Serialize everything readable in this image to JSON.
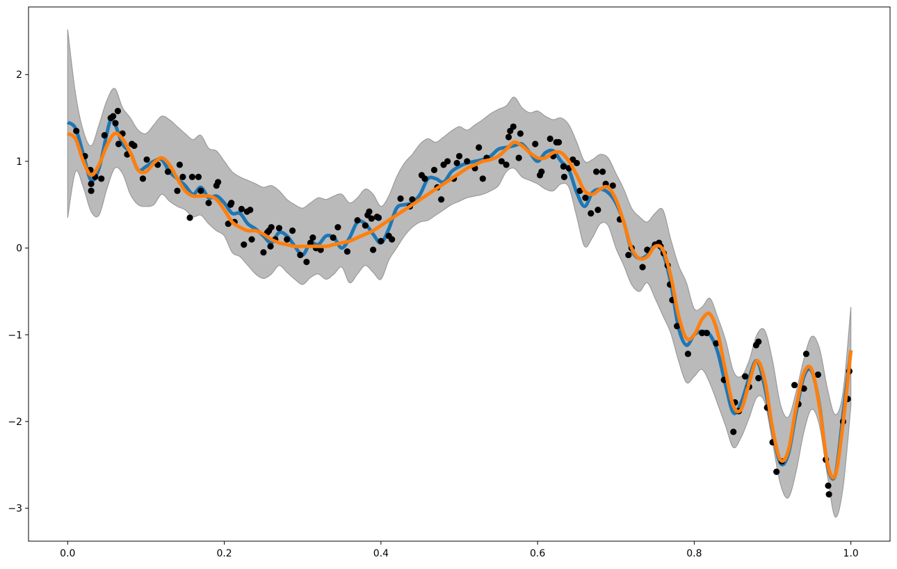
{
  "chart_data": {
    "type": "line",
    "title": "",
    "xlabel": "",
    "ylabel": "",
    "xlim": [
      -0.05,
      1.05
    ],
    "ylim": [
      -3.38,
      2.78
    ],
    "grid": false,
    "legend": "none",
    "x_ticks": [
      {
        "value": 0.0,
        "label": "0.0"
      },
      {
        "value": 0.2,
        "label": "0.2"
      },
      {
        "value": 0.4,
        "label": "0.4"
      },
      {
        "value": 0.6,
        "label": "0.6"
      },
      {
        "value": 0.8,
        "label": "0.8"
      },
      {
        "value": 1.0,
        "label": "1.0"
      }
    ],
    "y_ticks": [
      {
        "value": 2,
        "label": "2"
      },
      {
        "value": 1,
        "label": "1"
      },
      {
        "value": 0,
        "label": "0"
      },
      {
        "value": -1,
        "label": "−1"
      },
      {
        "value": -2,
        "label": "−2"
      },
      {
        "value": -3,
        "label": "−3"
      }
    ],
    "colors": {
      "band": "#bababa",
      "band_edge": "#9a9a9a",
      "blue": "#1f77b4",
      "orange": "#ff7f0e",
      "points": "#000000"
    },
    "series": [
      {
        "role": "uncertainty-band",
        "x": [
          0.0,
          0.01,
          0.02,
          0.03,
          0.04,
          0.05,
          0.06,
          0.07,
          0.08,
          0.09,
          0.1,
          0.11,
          0.12,
          0.13,
          0.14,
          0.15,
          0.16,
          0.17,
          0.18,
          0.19,
          0.2,
          0.21,
          0.22,
          0.23,
          0.24,
          0.25,
          0.26,
          0.27,
          0.28,
          0.29,
          0.3,
          0.31,
          0.32,
          0.33,
          0.34,
          0.35,
          0.36,
          0.37,
          0.38,
          0.39,
          0.4,
          0.41,
          0.42,
          0.43,
          0.44,
          0.45,
          0.46,
          0.47,
          0.48,
          0.49,
          0.5,
          0.51,
          0.52,
          0.53,
          0.54,
          0.55,
          0.56,
          0.57,
          0.58,
          0.59,
          0.6,
          0.61,
          0.62,
          0.63,
          0.64,
          0.65,
          0.66,
          0.67,
          0.68,
          0.69,
          0.7,
          0.71,
          0.72,
          0.73,
          0.74,
          0.75,
          0.76,
          0.77,
          0.78,
          0.79,
          0.8,
          0.81,
          0.82,
          0.83,
          0.84,
          0.85,
          0.86,
          0.87,
          0.88,
          0.89,
          0.9,
          0.91,
          0.92,
          0.93,
          0.94,
          0.95,
          0.96,
          0.97,
          0.98,
          0.99,
          1.0
        ],
        "upper": [
          2.52,
          1.78,
          1.35,
          1.18,
          1.42,
          1.7,
          1.84,
          1.62,
          1.5,
          1.36,
          1.32,
          1.42,
          1.52,
          1.48,
          1.4,
          1.32,
          1.25,
          1.3,
          1.15,
          1.12,
          1.0,
          0.88,
          0.82,
          0.78,
          0.74,
          0.7,
          0.72,
          0.66,
          0.56,
          0.5,
          0.46,
          0.52,
          0.58,
          0.56,
          0.6,
          0.62,
          0.52,
          0.58,
          0.68,
          0.62,
          0.48,
          0.6,
          0.82,
          0.98,
          1.08,
          1.2,
          1.26,
          1.22,
          1.28,
          1.35,
          1.4,
          1.36,
          1.42,
          1.48,
          1.55,
          1.6,
          1.64,
          1.74,
          1.62,
          1.56,
          1.58,
          1.52,
          1.48,
          1.5,
          1.42,
          1.22,
          1.0,
          1.02,
          1.08,
          1.04,
          0.86,
          0.68,
          0.46,
          0.36,
          0.3,
          0.4,
          0.44,
          0.1,
          -0.2,
          -0.4,
          -0.7,
          -0.68,
          -0.58,
          -0.8,
          -1.06,
          -1.42,
          -1.48,
          -1.3,
          -1.0,
          -0.95,
          -1.3,
          -1.8,
          -1.95,
          -1.66,
          -1.28,
          -1.02,
          -1.16,
          -1.62,
          -1.92,
          -1.66,
          -0.68
        ],
        "lower": [
          0.35,
          0.88,
          0.7,
          0.42,
          0.38,
          0.68,
          0.92,
          0.86,
          0.62,
          0.5,
          0.48,
          0.5,
          0.62,
          0.54,
          0.48,
          0.44,
          0.36,
          0.38,
          0.28,
          0.2,
          0.14,
          -0.05,
          -0.1,
          -0.2,
          -0.3,
          -0.35,
          -0.3,
          -0.2,
          -0.28,
          -0.36,
          -0.42,
          -0.34,
          -0.3,
          -0.36,
          -0.3,
          -0.22,
          -0.4,
          -0.3,
          -0.2,
          -0.28,
          -0.36,
          -0.14,
          0.0,
          0.14,
          0.24,
          0.3,
          0.32,
          0.38,
          0.44,
          0.5,
          0.54,
          0.58,
          0.6,
          0.62,
          0.66,
          0.72,
          0.88,
          0.92,
          0.82,
          0.78,
          0.74,
          0.68,
          0.66,
          0.74,
          0.7,
          0.36,
          0.02,
          0.12,
          0.28,
          0.26,
          0.0,
          -0.2,
          -0.42,
          -0.5,
          -0.4,
          -0.58,
          -0.78,
          -0.98,
          -1.3,
          -1.55,
          -1.48,
          -1.4,
          -1.56,
          -1.8,
          -2.05,
          -2.3,
          -2.18,
          -1.96,
          -1.72,
          -1.78,
          -2.24,
          -2.72,
          -2.88,
          -2.58,
          -2.12,
          -1.86,
          -2.05,
          -2.62,
          -3.1,
          -2.76,
          -1.82
        ]
      },
      {
        "role": "blue-line",
        "x": [
          0.0,
          0.01,
          0.02,
          0.03,
          0.04,
          0.05,
          0.055,
          0.06,
          0.07,
          0.08,
          0.09,
          0.1,
          0.11,
          0.12,
          0.13,
          0.14,
          0.15,
          0.16,
          0.17,
          0.18,
          0.19,
          0.2,
          0.21,
          0.22,
          0.23,
          0.24,
          0.25,
          0.26,
          0.27,
          0.28,
          0.29,
          0.3,
          0.31,
          0.32,
          0.33,
          0.34,
          0.35,
          0.36,
          0.37,
          0.38,
          0.39,
          0.4,
          0.41,
          0.42,
          0.43,
          0.44,
          0.45,
          0.46,
          0.47,
          0.48,
          0.49,
          0.5,
          0.51,
          0.52,
          0.53,
          0.54,
          0.55,
          0.56,
          0.57,
          0.58,
          0.59,
          0.6,
          0.61,
          0.62,
          0.63,
          0.64,
          0.65,
          0.66,
          0.67,
          0.68,
          0.69,
          0.7,
          0.71,
          0.72,
          0.73,
          0.74,
          0.75,
          0.76,
          0.77,
          0.78,
          0.79,
          0.8,
          0.81,
          0.82,
          0.83,
          0.84,
          0.85,
          0.86,
          0.87,
          0.88,
          0.89,
          0.9,
          0.91,
          0.92,
          0.93,
          0.94,
          0.95,
          0.96,
          0.97,
          0.98,
          0.99,
          1.0
        ],
        "y": [
          1.45,
          1.38,
          1.08,
          0.78,
          0.92,
          1.32,
          1.48,
          1.44,
          1.2,
          1.1,
          0.9,
          0.94,
          1.0,
          1.02,
          0.88,
          0.8,
          0.72,
          0.62,
          0.7,
          0.58,
          0.6,
          0.52,
          0.4,
          0.4,
          0.28,
          0.22,
          0.14,
          0.06,
          0.18,
          0.14,
          0.02,
          -0.08,
          0.06,
          0.04,
          0.14,
          0.12,
          0.0,
          0.12,
          0.3,
          0.28,
          0.16,
          0.06,
          0.22,
          0.46,
          0.5,
          0.52,
          0.62,
          0.8,
          0.8,
          0.76,
          0.88,
          0.94,
          0.98,
          1.0,
          1.02,
          1.06,
          1.14,
          1.16,
          1.18,
          1.2,
          1.1,
          1.0,
          1.1,
          1.12,
          1.0,
          0.9,
          0.64,
          0.48,
          0.64,
          0.68,
          0.64,
          0.52,
          0.3,
          -0.02,
          -0.12,
          -0.08,
          0.04,
          -0.06,
          -0.4,
          -0.92,
          -1.12,
          -1.0,
          -0.96,
          -1.0,
          -1.2,
          -1.58,
          -1.9,
          -1.78,
          -1.5,
          -1.3,
          -1.6,
          -2.1,
          -2.48,
          -2.38,
          -1.9,
          -1.48,
          -1.42,
          -1.82,
          -2.5,
          -2.62,
          -1.92,
          -1.18
        ]
      },
      {
        "role": "orange-line",
        "x": [
          0.0,
          0.01,
          0.02,
          0.03,
          0.04,
          0.05,
          0.06,
          0.07,
          0.08,
          0.09,
          0.1,
          0.11,
          0.12,
          0.13,
          0.14,
          0.15,
          0.16,
          0.17,
          0.18,
          0.19,
          0.2,
          0.21,
          0.22,
          0.23,
          0.24,
          0.25,
          0.26,
          0.27,
          0.28,
          0.29,
          0.3,
          0.31,
          0.32,
          0.33,
          0.34,
          0.35,
          0.36,
          0.37,
          0.38,
          0.39,
          0.4,
          0.41,
          0.42,
          0.43,
          0.44,
          0.45,
          0.46,
          0.47,
          0.48,
          0.49,
          0.5,
          0.51,
          0.52,
          0.53,
          0.54,
          0.55,
          0.56,
          0.57,
          0.58,
          0.59,
          0.6,
          0.61,
          0.62,
          0.63,
          0.64,
          0.65,
          0.66,
          0.67,
          0.68,
          0.69,
          0.7,
          0.71,
          0.72,
          0.73,
          0.74,
          0.75,
          0.76,
          0.77,
          0.78,
          0.79,
          0.8,
          0.81,
          0.82,
          0.83,
          0.84,
          0.85,
          0.86,
          0.87,
          0.88,
          0.89,
          0.9,
          0.91,
          0.92,
          0.93,
          0.94,
          0.95,
          0.96,
          0.97,
          0.98,
          0.99,
          1.0
        ],
        "y": [
          1.32,
          1.26,
          1.0,
          0.84,
          0.96,
          1.18,
          1.32,
          1.26,
          1.1,
          0.9,
          0.88,
          0.98,
          1.04,
          0.96,
          0.8,
          0.66,
          0.6,
          0.6,
          0.6,
          0.56,
          0.44,
          0.3,
          0.24,
          0.2,
          0.2,
          0.16,
          0.1,
          0.06,
          0.04,
          0.02,
          0.02,
          0.02,
          0.02,
          0.02,
          0.04,
          0.06,
          0.08,
          0.12,
          0.16,
          0.2,
          0.26,
          0.32,
          0.38,
          0.44,
          0.5,
          0.56,
          0.62,
          0.68,
          0.74,
          0.8,
          0.86,
          0.92,
          0.96,
          1.0,
          1.02,
          1.06,
          1.14,
          1.22,
          1.18,
          1.1,
          1.04,
          1.04,
          1.1,
          1.1,
          1.0,
          0.84,
          0.66,
          0.62,
          0.68,
          0.7,
          0.56,
          0.3,
          0.0,
          -0.12,
          -0.1,
          0.02,
          -0.02,
          -0.32,
          -0.78,
          -1.04,
          -1.0,
          -0.82,
          -0.76,
          -0.98,
          -1.42,
          -1.82,
          -1.86,
          -1.56,
          -1.3,
          -1.52,
          -2.08,
          -2.44,
          -2.34,
          -1.84,
          -1.44,
          -1.4,
          -1.84,
          -2.48,
          -2.62,
          -2.02,
          -1.18
        ]
      }
    ],
    "points": [
      [
        0.011,
        1.35
      ],
      [
        0.022,
        1.06
      ],
      [
        0.029,
        0.9
      ],
      [
        0.03,
        0.74
      ],
      [
        0.03,
        0.66
      ],
      [
        0.035,
        0.82
      ],
      [
        0.043,
        0.8
      ],
      [
        0.047,
        1.3
      ],
      [
        0.055,
        1.5
      ],
      [
        0.058,
        1.52
      ],
      [
        0.061,
        1.44
      ],
      [
        0.064,
        1.58
      ],
      [
        0.065,
        1.2
      ],
      [
        0.07,
        1.32
      ],
      [
        0.076,
        1.08
      ],
      [
        0.082,
        1.2
      ],
      [
        0.085,
        1.18
      ],
      [
        0.096,
        0.8
      ],
      [
        0.101,
        1.02
      ],
      [
        0.115,
        0.96
      ],
      [
        0.128,
        0.88
      ],
      [
        0.14,
        0.66
      ],
      [
        0.143,
        0.96
      ],
      [
        0.147,
        0.82
      ],
      [
        0.156,
        0.35
      ],
      [
        0.159,
        0.82
      ],
      [
        0.167,
        0.82
      ],
      [
        0.17,
        0.66
      ],
      [
        0.18,
        0.52
      ],
      [
        0.19,
        0.72
      ],
      [
        0.192,
        0.76
      ],
      [
        0.205,
        0.28
      ],
      [
        0.208,
        0.5
      ],
      [
        0.209,
        0.52
      ],
      [
        0.213,
        0.3
      ],
      [
        0.222,
        0.45
      ],
      [
        0.225,
        0.04
      ],
      [
        0.229,
        0.42
      ],
      [
        0.233,
        0.44
      ],
      [
        0.235,
        0.1
      ],
      [
        0.25,
        -0.05
      ],
      [
        0.255,
        0.18
      ],
      [
        0.257,
        0.2
      ],
      [
        0.259,
        0.02
      ],
      [
        0.26,
        0.24
      ],
      [
        0.265,
        0.1
      ],
      [
        0.27,
        0.23
      ],
      [
        0.28,
        0.1
      ],
      [
        0.287,
        0.2
      ],
      [
        0.297,
        -0.08
      ],
      [
        0.305,
        -0.16
      ],
      [
        0.31,
        0.06
      ],
      [
        0.313,
        0.12
      ],
      [
        0.317,
        0.0
      ],
      [
        0.323,
        -0.02
      ],
      [
        0.339,
        0.12
      ],
      [
        0.345,
        0.24
      ],
      [
        0.357,
        -0.04
      ],
      [
        0.37,
        0.32
      ],
      [
        0.38,
        0.26
      ],
      [
        0.383,
        0.38
      ],
      [
        0.385,
        0.42
      ],
      [
        0.388,
        0.34
      ],
      [
        0.39,
        -0.02
      ],
      [
        0.395,
        0.36
      ],
      [
        0.397,
        0.35
      ],
      [
        0.4,
        0.08
      ],
      [
        0.41,
        0.14
      ],
      [
        0.414,
        0.1
      ],
      [
        0.425,
        0.57
      ],
      [
        0.437,
        0.48
      ],
      [
        0.44,
        0.56
      ],
      [
        0.452,
        0.84
      ],
      [
        0.456,
        0.8
      ],
      [
        0.468,
        0.9
      ],
      [
        0.472,
        0.7
      ],
      [
        0.477,
        0.56
      ],
      [
        0.48,
        0.96
      ],
      [
        0.485,
        1.0
      ],
      [
        0.493,
        0.8
      ],
      [
        0.497,
        0.98
      ],
      [
        0.5,
        1.06
      ],
      [
        0.51,
        1.0
      ],
      [
        0.52,
        0.92
      ],
      [
        0.525,
        1.16
      ],
      [
        0.53,
        0.8
      ],
      [
        0.535,
        1.04
      ],
      [
        0.554,
        1.0
      ],
      [
        0.56,
        0.96
      ],
      [
        0.563,
        1.28
      ],
      [
        0.565,
        1.35
      ],
      [
        0.569,
        1.4
      ],
      [
        0.576,
        1.04
      ],
      [
        0.578,
        1.32
      ],
      [
        0.597,
        1.2
      ],
      [
        0.603,
        0.84
      ],
      [
        0.605,
        0.88
      ],
      [
        0.616,
        1.26
      ],
      [
        0.62,
        1.06
      ],
      [
        0.624,
        1.22
      ],
      [
        0.627,
        1.22
      ],
      [
        0.633,
        0.94
      ],
      [
        0.634,
        0.82
      ],
      [
        0.64,
        0.92
      ],
      [
        0.645,
        1.02
      ],
      [
        0.65,
        0.98
      ],
      [
        0.654,
        0.66
      ],
      [
        0.661,
        0.58
      ],
      [
        0.668,
        0.4
      ],
      [
        0.675,
        0.88
      ],
      [
        0.677,
        0.44
      ],
      [
        0.683,
        0.88
      ],
      [
        0.687,
        0.74
      ],
      [
        0.696,
        0.72
      ],
      [
        0.705,
        0.33
      ],
      [
        0.716,
        -0.08
      ],
      [
        0.72,
        0.0
      ],
      [
        0.734,
        -0.22
      ],
      [
        0.74,
        -0.02
      ],
      [
        0.75,
        0.04
      ],
      [
        0.755,
        0.06
      ],
      [
        0.757,
        0.02
      ],
      [
        0.761,
        -0.06
      ],
      [
        0.766,
        -0.2
      ],
      [
        0.769,
        -0.42
      ],
      [
        0.772,
        -0.6
      ],
      [
        0.778,
        -0.9
      ],
      [
        0.792,
        -1.22
      ],
      [
        0.81,
        -0.98
      ],
      [
        0.816,
        -0.98
      ],
      [
        0.828,
        -1.1
      ],
      [
        0.838,
        -1.52
      ],
      [
        0.85,
        -2.12
      ],
      [
        0.852,
        -1.78
      ],
      [
        0.857,
        -1.88
      ],
      [
        0.865,
        -1.48
      ],
      [
        0.87,
        -1.6
      ],
      [
        0.879,
        -1.12
      ],
      [
        0.882,
        -1.08
      ],
      [
        0.882,
        -1.5
      ],
      [
        0.893,
        -1.84
      ],
      [
        0.9,
        -2.24
      ],
      [
        0.905,
        -2.58
      ],
      [
        0.912,
        -2.46
      ],
      [
        0.928,
        -1.58
      ],
      [
        0.933,
        -1.8
      ],
      [
        0.94,
        -1.62
      ],
      [
        0.943,
        -1.22
      ],
      [
        0.958,
        -1.46
      ],
      [
        0.968,
        -2.44
      ],
      [
        0.971,
        -2.74
      ],
      [
        0.972,
        -2.84
      ],
      [
        0.99,
        -2.0
      ],
      [
        0.996,
        -1.74
      ],
      [
        0.998,
        -1.42
      ]
    ]
  }
}
